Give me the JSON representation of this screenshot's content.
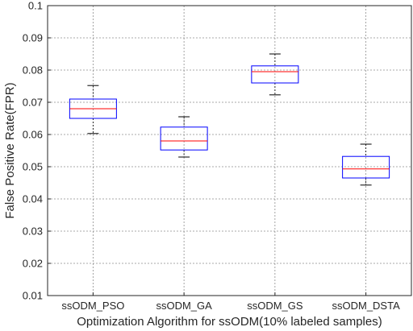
{
  "chart_data": {
    "type": "box",
    "title": "",
    "xlabel": "Optimization Algorithm for ssODM(10% labeled samples)",
    "ylabel": "False Positive Rate(FPR)",
    "ylim": [
      0.01,
      0.1
    ],
    "yticks": [
      "0.01",
      "0.02",
      "0.03",
      "0.04",
      "0.05",
      "0.06",
      "0.07",
      "0.08",
      "0.09",
      "0.1"
    ],
    "grid": "dashed",
    "categories": [
      "ssODM_PSO",
      "ssODM_GA",
      "ssODM_GS",
      "ssODM_DSTA"
    ],
    "boxes": [
      {
        "category": "ssODM_PSO",
        "min": 0.0603,
        "q1": 0.065,
        "median": 0.068,
        "q3": 0.071,
        "max": 0.0752
      },
      {
        "category": "ssODM_GA",
        "min": 0.053,
        "q1": 0.0552,
        "median": 0.058,
        "q3": 0.0623,
        "max": 0.0655
      },
      {
        "category": "ssODM_GS",
        "min": 0.0723,
        "q1": 0.076,
        "median": 0.0795,
        "q3": 0.0813,
        "max": 0.085
      },
      {
        "category": "ssODM_DSTA",
        "min": 0.0443,
        "q1": 0.0465,
        "median": 0.0493,
        "q3": 0.0532,
        "max": 0.057
      }
    ],
    "colors": {
      "box": "#0000ff",
      "median": "#ff0000",
      "whisker": "#000000",
      "grid": "#8c8c8c",
      "axis": "#262626"
    }
  }
}
